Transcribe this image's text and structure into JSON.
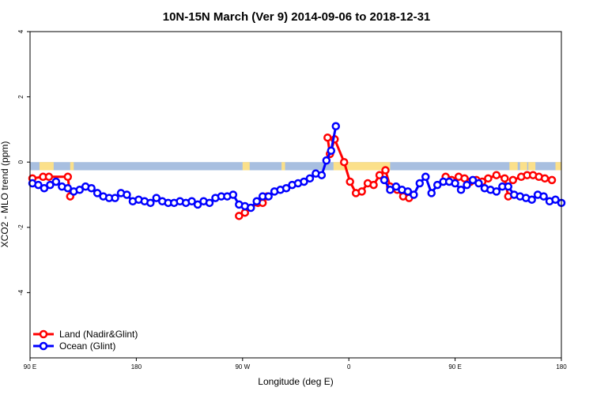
{
  "chart_data": {
    "type": "line",
    "title": "10N-15N March (Ver 9)   2014-09-06 to 2018-12-31",
    "xlabel": "Longitude (deg E)",
    "ylabel": "XCO2 - MLO trend (ppm)",
    "x_unit": "degrees east, continuous from 90 E eastward to 450 (90 E again) and beyond to 540 (180)",
    "xlim": [
      90,
      540
    ],
    "ylim": [
      -6,
      4
    ],
    "x_ticks": [
      {
        "value": 90,
        "label": "90 E"
      },
      {
        "value": 180,
        "label": "180"
      },
      {
        "value": 270,
        "label": "90 W"
      },
      {
        "value": 360,
        "label": "0"
      },
      {
        "value": 450,
        "label": "90 E"
      },
      {
        "value": 540,
        "label": "180"
      }
    ],
    "y_ticks": [
      {
        "value": -4,
        "label": "-4"
      },
      {
        "value": -2,
        "label": "-2"
      },
      {
        "value": 0,
        "label": "0"
      },
      {
        "value": 2,
        "label": "2"
      },
      {
        "value": 4,
        "label": "4"
      }
    ],
    "grid": false,
    "legend_position": "bottom-left",
    "band": {
      "y_from": -0.25,
      "y_to": 0,
      "ocean_color": "#a8bfe0",
      "land_color": "#fbe08a",
      "land_segments": [
        [
          98,
          110
        ],
        [
          124,
          127
        ],
        [
          270,
          276
        ],
        [
          303,
          306
        ],
        [
          347,
          395
        ],
        [
          496,
          503
        ],
        [
          505,
          511
        ],
        [
          512,
          518
        ],
        [
          535,
          540
        ]
      ]
    },
    "series": [
      {
        "name": "Land (Nadir&Glint)",
        "color": "#ff0000",
        "segments": [
          [
            [
              92,
              -0.5
            ],
            [
              101,
              -0.45
            ],
            [
              106,
              -0.45
            ],
            [
              122,
              -0.45
            ],
            [
              124,
              -1.05
            ]
          ],
          [
            [
              267,
              -1.65
            ],
            [
              272,
              -1.55
            ],
            [
              283,
              -1.25
            ],
            [
              287,
              -1.25
            ],
            [
              291,
              -1.05
            ]
          ],
          [
            [
              342,
              0.75
            ],
            [
              344,
              0.25
            ],
            [
              348,
              0.7
            ],
            [
              356,
              0.0
            ],
            [
              361,
              -0.6
            ],
            [
              366,
              -0.95
            ],
            [
              371,
              -0.9
            ],
            [
              376,
              -0.65
            ],
            [
              381,
              -0.7
            ],
            [
              386,
              -0.4
            ],
            [
              391,
              -0.25
            ],
            [
              395,
              -0.75
            ],
            [
              401,
              -0.85
            ],
            [
              406,
              -1.05
            ],
            [
              411,
              -1.1
            ]
          ],
          [
            [
              499,
              -0.55
            ],
            [
              506,
              -0.45
            ],
            [
              511,
              -0.4
            ],
            [
              516,
              -0.4
            ],
            [
              521,
              -0.45
            ],
            [
              526,
              -0.5
            ],
            [
              532,
              -0.55
            ]
          ],
          [
            [
              442,
              -0.45
            ],
            [
              447,
              -0.55
            ],
            [
              453,
              -0.45
            ],
            [
              458,
              -0.5
            ],
            [
              463,
              -0.6
            ],
            [
              468,
              -0.55
            ],
            [
              473,
              -0.6
            ],
            [
              478,
              -0.5
            ],
            [
              485,
              -0.4
            ],
            [
              492,
              -0.5
            ],
            [
              495,
              -1.05
            ]
          ]
        ]
      },
      {
        "name": "Ocean (Glint)",
        "color": "#0000ff",
        "segments": [
          [
            [
              92,
              -0.65
            ],
            [
              97,
              -0.7
            ],
            [
              102,
              -0.8
            ],
            [
              107,
              -0.7
            ],
            [
              112,
              -0.6
            ],
            [
              117,
              -0.75
            ],
            [
              122,
              -0.8
            ],
            [
              127,
              -0.9
            ],
            [
              132,
              -0.85
            ],
            [
              137,
              -0.75
            ],
            [
              142,
              -0.8
            ],
            [
              147,
              -0.95
            ],
            [
              152,
              -1.05
            ],
            [
              157,
              -1.1
            ],
            [
              162,
              -1.1
            ],
            [
              167,
              -0.95
            ],
            [
              172,
              -1.0
            ],
            [
              177,
              -1.2
            ],
            [
              182,
              -1.15
            ],
            [
              187,
              -1.2
            ],
            [
              192,
              -1.25
            ],
            [
              197,
              -1.1
            ],
            [
              202,
              -1.2
            ],
            [
              207,
              -1.25
            ],
            [
              212,
              -1.25
            ],
            [
              217,
              -1.2
            ],
            [
              222,
              -1.25
            ],
            [
              227,
              -1.2
            ],
            [
              232,
              -1.3
            ],
            [
              237,
              -1.2
            ],
            [
              242,
              -1.25
            ],
            [
              247,
              -1.1
            ],
            [
              252,
              -1.05
            ],
            [
              257,
              -1.05
            ],
            [
              262,
              -1.0
            ],
            [
              267,
              -1.3
            ],
            [
              272,
              -1.35
            ],
            [
              277,
              -1.4
            ],
            [
              282,
              -1.2
            ],
            [
              287,
              -1.05
            ],
            [
              292,
              -1.05
            ],
            [
              297,
              -0.9
            ],
            [
              302,
              -0.85
            ],
            [
              307,
              -0.8
            ],
            [
              312,
              -0.7
            ],
            [
              317,
              -0.65
            ],
            [
              322,
              -0.6
            ],
            [
              327,
              -0.5
            ],
            [
              332,
              -0.35
            ],
            [
              337,
              -0.4
            ],
            [
              341,
              0.05
            ],
            [
              345,
              0.35
            ],
            [
              349,
              1.1
            ]
          ],
          [
            [
              390,
              -0.55
            ],
            [
              395,
              -0.85
            ],
            [
              400,
              -0.75
            ],
            [
              405,
              -0.85
            ],
            [
              410,
              -0.9
            ],
            [
              415,
              -1.0
            ],
            [
              420,
              -0.65
            ],
            [
              425,
              -0.45
            ],
            [
              430,
              -0.95
            ],
            [
              435,
              -0.7
            ],
            [
              440,
              -0.6
            ],
            [
              445,
              -0.6
            ],
            [
              450,
              -0.65
            ],
            [
              455,
              -0.85
            ],
            [
              460,
              -0.7
            ],
            [
              465,
              -0.55
            ],
            [
              470,
              -0.65
            ],
            [
              475,
              -0.8
            ],
            [
              480,
              -0.85
            ],
            [
              485,
              -0.9
            ],
            [
              490,
              -0.75
            ],
            [
              495,
              -0.75
            ],
            [
              500,
              -1.0
            ],
            [
              505,
              -1.05
            ],
            [
              510,
              -1.1
            ],
            [
              515,
              -1.15
            ],
            [
              520,
              -1.0
            ],
            [
              525,
              -1.05
            ],
            [
              530,
              -1.2
            ],
            [
              535,
              -1.15
            ],
            [
              540,
              -1.25
            ]
          ]
        ]
      }
    ]
  }
}
